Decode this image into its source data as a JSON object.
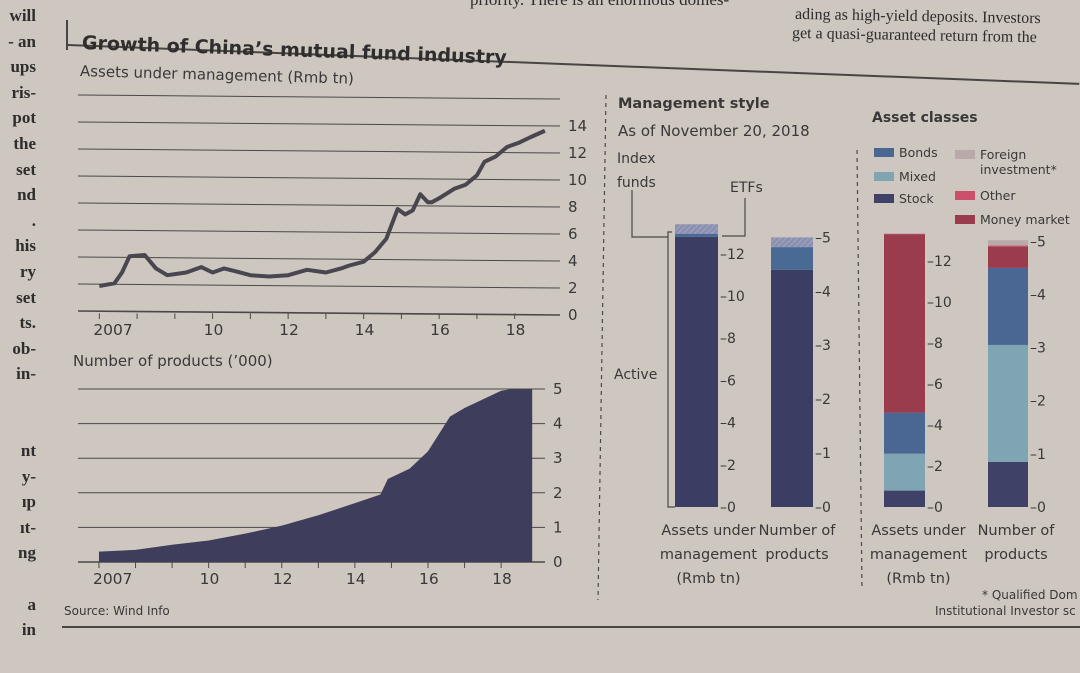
{
  "article": {
    "left_column_fragments": [
      "will",
      "- an",
      "ups",
      "ris-",
      "pot",
      "the",
      "set",
      "nd",
      ".",
      "his",
      "ry",
      "set",
      "ts.",
      "ob-",
      "in-",
      "",
      "",
      "nt",
      "y-",
      "ıp",
      "ıt-",
      "ng",
      "",
      "a",
      "in"
    ],
    "top_middle_lines": [
      "priority.  There is an enormous domes-"
    ],
    "top_right_lines": [
      "ading as high-yield deposits. Investors",
      "get a quasi-guaranteed return from the"
    ]
  },
  "chart": {
    "title": "Growth of China’s mutual fund industry",
    "source": "Source: Wind Info",
    "footnote_lines": [
      "* Qualified Dom",
      "Institutional Investor sc"
    ]
  },
  "chart_data": [
    {
      "type": "line",
      "title": "Assets under management (Rmb tn)",
      "x_ticks": [
        "2007",
        "10",
        "12",
        "14",
        "16",
        "18"
      ],
      "x_tick_values": [
        2007,
        2010,
        2012,
        2014,
        2016,
        2018
      ],
      "y_ticks": [
        "0",
        "2",
        "4",
        "6",
        "8",
        "10",
        "12",
        "14"
      ],
      "ylim": [
        0,
        16
      ],
      "xlim": [
        2006.7,
        2019.2
      ],
      "grid": true,
      "color": "#4a4650",
      "x": [
        2007.0,
        2007.4,
        2007.6,
        2007.8,
        2008.2,
        2008.5,
        2008.8,
        2009.3,
        2009.7,
        2010.0,
        2010.3,
        2010.6,
        2011.0,
        2011.5,
        2012.0,
        2012.5,
        2013.0,
        2013.4,
        2013.6,
        2014.0,
        2014.3,
        2014.6,
        2014.9,
        2015.1,
        2015.3,
        2015.5,
        2015.7,
        2015.8,
        2016.0,
        2016.4,
        2016.7,
        2017.0,
        2017.2,
        2017.5,
        2017.8,
        2018.1,
        2018.4,
        2018.8
      ],
      "y": [
        2.0,
        2.2,
        3.0,
        4.2,
        4.3,
        3.3,
        2.8,
        3.0,
        3.4,
        3.0,
        3.3,
        3.1,
        2.8,
        2.7,
        2.8,
        3.2,
        3.0,
        3.3,
        3.5,
        3.8,
        4.5,
        5.5,
        7.7,
        7.3,
        7.6,
        8.8,
        8.2,
        8.2,
        8.5,
        9.2,
        9.5,
        10.2,
        11.2,
        11.6,
        12.3,
        12.6,
        13.0,
        13.5
      ]
    },
    {
      "type": "area",
      "title": "Number of products (’000)",
      "x_ticks": [
        "2007",
        "10",
        "12",
        "14",
        "16",
        "18"
      ],
      "x_tick_values": [
        2007,
        2010,
        2012,
        2014,
        2016,
        2018
      ],
      "y_ticks": [
        "0",
        "1",
        "2",
        "3",
        "4",
        "5"
      ],
      "ylim": [
        0,
        5
      ],
      "xlim": [
        2006.7,
        2019.2
      ],
      "grid": true,
      "color": "#3e3d5c",
      "x": [
        2007.0,
        2008.0,
        2009.0,
        2010.0,
        2011.0,
        2012.0,
        2013.0,
        2014.0,
        2014.7,
        2014.9,
        2015.5,
        2016.0,
        2016.3,
        2016.6,
        2017.0,
        2017.5,
        2018.0,
        2018.3,
        2018.85
      ],
      "y": [
        0.3,
        0.35,
        0.5,
        0.62,
        0.82,
        1.05,
        1.35,
        1.7,
        1.95,
        2.4,
        2.7,
        3.2,
        3.7,
        4.2,
        4.45,
        4.7,
        4.95,
        5.0,
        5.0
      ]
    },
    {
      "type": "bar",
      "stacked": true,
      "title": "Management style",
      "subtitle": "As of November 20, 2018",
      "categories": [
        "Assets under management (Rmb tn)",
        "Number of products"
      ],
      "category_label_lines": [
        [
          "Assets under",
          "management",
          "(Rmb tn)"
        ],
        [
          "Number of",
          "products"
        ]
      ],
      "axes": [
        {
          "ticks": [
            "0",
            "2",
            "4",
            "6",
            "8",
            "10",
            "12"
          ],
          "ylim": [
            0,
            13.6
          ]
        },
        {
          "ticks": [
            "0",
            "1",
            "2",
            "3",
            "4",
            "5"
          ],
          "ylim": [
            0,
            5.1
          ]
        }
      ],
      "series": [
        {
          "name": "Active",
          "values": [
            12.8,
            4.4
          ],
          "color": "#3b3e62"
        },
        {
          "name": "Index funds",
          "name_lines": [
            "Index",
            "funds"
          ],
          "values": [
            0.15,
            0.42
          ],
          "color": "#4a6a96"
        },
        {
          "name": "ETFs",
          "values": [
            0.45,
            0.18
          ],
          "color": "#8b8fb0"
        }
      ]
    },
    {
      "type": "bar",
      "stacked": true,
      "title": "Asset classes",
      "categories": [
        "Assets under management (Rmb tn)",
        "Number of products"
      ],
      "category_label_lines": [
        [
          "Assets under",
          "management",
          "(Rmb tn)"
        ],
        [
          "Number of",
          "products"
        ]
      ],
      "axes": [
        {
          "ticks": [
            "0",
            "2",
            "4",
            "6",
            "8",
            "10",
            "12"
          ],
          "ylim": [
            0,
            13.6
          ]
        },
        {
          "ticks": [
            "0",
            "1",
            "2",
            "3",
            "4",
            "5"
          ],
          "ylim": [
            0,
            5.1
          ]
        }
      ],
      "series": [
        {
          "name": "Stock",
          "values": [
            0.8,
            0.85
          ],
          "color": "#3f4166"
        },
        {
          "name": "Mixed",
          "values": [
            1.8,
            2.2
          ],
          "color": "#7fa5b3"
        },
        {
          "name": "Bonds",
          "values": [
            2.0,
            1.45
          ],
          "color": "#4a6794"
        },
        {
          "name": "Money market",
          "values": [
            8.7,
            0.4
          ],
          "color": "#9a3b4e"
        },
        {
          "name": "Other",
          "values": [
            0.02,
            0.02
          ],
          "color": "#cc506c"
        },
        {
          "name": "Foreign investment*",
          "name_lines": [
            "Foreign",
            "investment*"
          ],
          "values": [
            0.02,
            0.1
          ],
          "color": "#b9a9a9"
        }
      ]
    }
  ]
}
